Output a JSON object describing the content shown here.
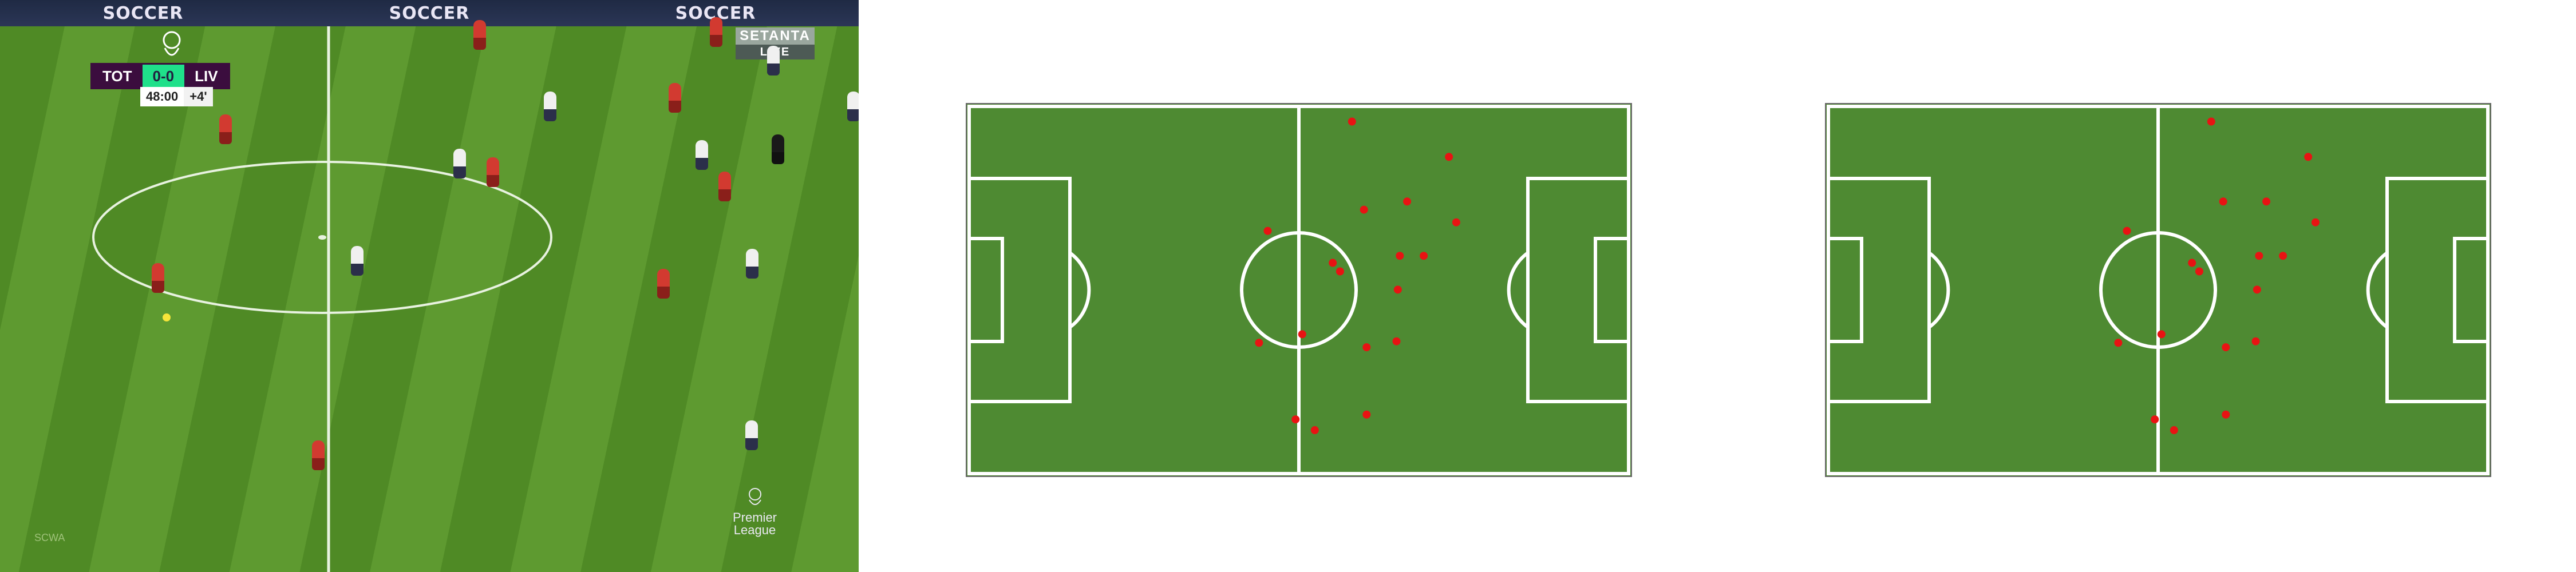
{
  "broadcast": {
    "ad_board": [
      "SOCCER",
      "SOCCER",
      "SOCCER"
    ],
    "scorebug": {
      "home": "TOT",
      "score": "0-0",
      "away": "LIV",
      "clock": "48:00",
      "added": "+4'"
    },
    "channel": {
      "line1": "SETANTA",
      "line2": "LIVE"
    },
    "watermark": [
      "Premier",
      "League"
    ],
    "corner_mark": "SCWA"
  },
  "colors": {
    "pitch": "#4e8a32",
    "line": "#ffffff",
    "player_dot": "#e81313",
    "scorebug_team": "#3b0d3e",
    "scorebug_score": "#1fe08a"
  },
  "boards": [
    {
      "name": "board-full",
      "players": [
        [
          0.58,
          0.047
        ],
        [
          0.726,
          0.142
        ],
        [
          0.598,
          0.284
        ],
        [
          0.663,
          0.262
        ],
        [
          0.737,
          0.318
        ],
        [
          0.453,
          0.341
        ],
        [
          0.551,
          0.427
        ],
        [
          0.562,
          0.45
        ],
        [
          0.652,
          0.408
        ],
        [
          0.688,
          0.408
        ],
        [
          0.649,
          0.499
        ],
        [
          0.505,
          0.619
        ],
        [
          0.44,
          0.642
        ],
        [
          0.647,
          0.638
        ],
        [
          0.602,
          0.654
        ],
        [
          0.495,
          0.848
        ],
        [
          0.524,
          0.877
        ],
        [
          0.602,
          0.835
        ]
      ]
    },
    {
      "name": "board-subset",
      "players": [
        [
          0.58,
          0.047
        ],
        [
          0.726,
          0.142
        ],
        [
          0.598,
          0.262
        ],
        [
          0.663,
          0.262
        ],
        [
          0.737,
          0.318
        ],
        [
          0.453,
          0.341
        ],
        [
          0.551,
          0.427
        ],
        [
          0.562,
          0.45
        ],
        [
          0.652,
          0.408
        ],
        [
          0.688,
          0.408
        ],
        [
          0.649,
          0.499
        ],
        [
          0.505,
          0.619
        ],
        [
          0.44,
          0.642
        ],
        [
          0.647,
          0.638
        ],
        [
          0.602,
          0.654
        ],
        [
          0.495,
          0.848
        ],
        [
          0.524,
          0.877
        ],
        [
          0.602,
          0.835
        ]
      ]
    }
  ]
}
